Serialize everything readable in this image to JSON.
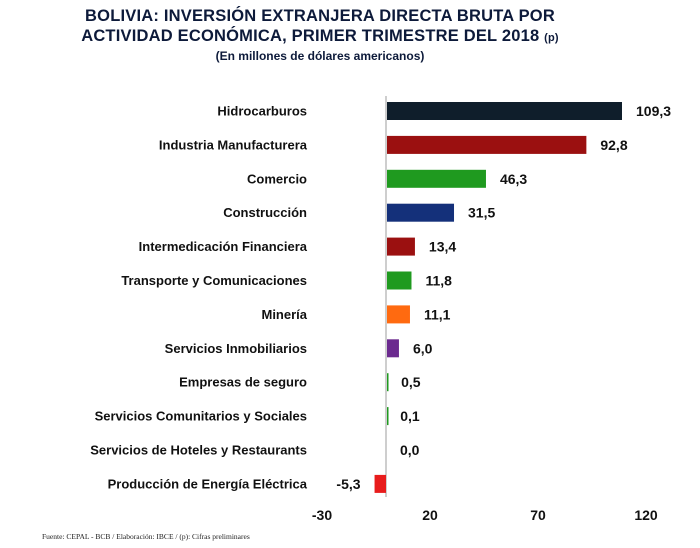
{
  "title": {
    "line1": "BOLIVIA: INVERSIÓN EXTRANJERA DIRECTA BRUTA POR",
    "line2": "ACTIVIDAD ECONÓMICA, PRIMER TRIMESTRE DEL 2018",
    "line2_mark": "(p)",
    "subtitle": "(En millones de dólares americanos)"
  },
  "source": "Fuente: CEPAL - BCB /  Elaboración: IBCE / (p): Cifras preliminares",
  "chart_data": {
    "type": "bar",
    "orientation": "horizontal",
    "categories": [
      "Hidrocarburos",
      "Industria Manufacturera",
      "Comercio",
      "Construcción",
      "Intermedicación Financiera",
      "Transporte y Comunicaciones",
      "Minería",
      "Servicios Inmobiliarios",
      "Empresas de seguro",
      "Servicios Comunitarios y Sociales",
      "Servicios de Hoteles y Restaurants",
      "Producción de Energía Eléctrica"
    ],
    "values": [
      109.3,
      92.8,
      46.3,
      31.5,
      13.4,
      11.8,
      11.1,
      6.0,
      0.5,
      0.1,
      0.0,
      -5.3
    ],
    "value_labels": [
      "109,3",
      "92,8",
      "46,3",
      "31,5",
      "13,4",
      "11,8",
      "11,1",
      "6,0",
      "0,5",
      "0,1",
      "0,0",
      "-5,3"
    ],
    "colors": [
      "#0f1e2b",
      "#9b1010",
      "#1f9a1f",
      "#14307a",
      "#9b1010",
      "#1f9a1f",
      "#ff6a10",
      "#6b2a8f",
      "#1f9a1f",
      "#1f9a1f",
      "#1f9a1f",
      "#e81c1c"
    ],
    "xticks": [
      -30,
      20,
      70,
      120
    ],
    "xtick_labels": [
      "-30",
      "20",
      "70",
      "120"
    ],
    "xlim": [
      -30,
      120
    ],
    "grid": false,
    "legend": "none",
    "xlabel": "",
    "ylabel": ""
  }
}
